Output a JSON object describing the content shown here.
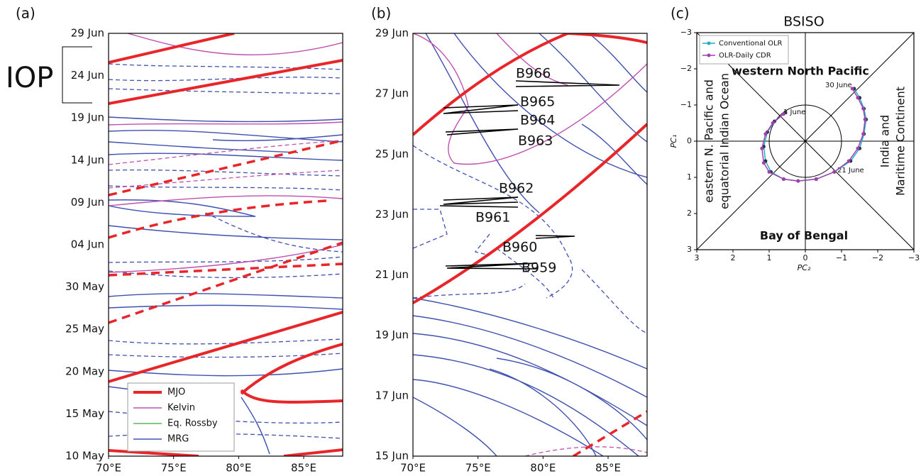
{
  "chart_data": [
    {
      "type": "contour",
      "panel": "(a)",
      "annotation": "IOP",
      "yticks": [
        "10 May",
        "15 May",
        "20 May",
        "25 May",
        "30 May",
        "04 Jun",
        "09 Jun",
        "14 Jun",
        "19 Jun",
        "24 Jun",
        "29 Jun"
      ],
      "xlim": [
        70,
        88
      ],
      "xticks": [
        {
          "value": 70,
          "label": "70°E"
        },
        {
          "value": 75,
          "label": "75°E"
        },
        {
          "value": 80,
          "label": "80°E"
        },
        {
          "value": 85,
          "label": "85°E"
        }
      ],
      "legend": [
        {
          "name": "MJO",
          "color": "#e8262a"
        },
        {
          "name": "Kelvin",
          "color": "#c050b0"
        },
        {
          "name": "Eq. Rossby",
          "color": "#5cb85c"
        },
        {
          "name": "MRG",
          "color": "#4050b0"
        }
      ]
    },
    {
      "type": "contour",
      "panel": "(b)",
      "yticks": [
        "15 Jun",
        "17 Jun",
        "19 Jun",
        "21 Jun",
        "23 Jun",
        "25 Jun",
        "27 Jun",
        "29 Jun"
      ],
      "xlim": [
        70,
        88
      ],
      "xticks": [
        {
          "value": 70,
          "label": "70°E"
        },
        {
          "value": 75,
          "label": "75°E"
        },
        {
          "value": 80,
          "label": "80°E"
        },
        {
          "value": 85,
          "label": "85°E"
        }
      ],
      "labels": [
        "B966",
        "B965",
        "B964",
        "B963",
        "B962",
        "B961",
        "B960",
        "B959"
      ]
    },
    {
      "type": "scatter",
      "panel": "(c)",
      "title": "BSISO",
      "x_label": "PC₂",
      "y_label": "PC₁",
      "xlim": [
        3,
        -3
      ],
      "ylim": [
        3,
        -3
      ],
      "xticks": [
        3,
        2,
        1,
        0,
        {
          "value": -1,
          "label": "−1"
        },
        {
          "value": -2,
          "label": "−2"
        },
        {
          "value": -3,
          "label": "−3"
        }
      ],
      "yticks": [
        {
          "value": -3,
          "label": "−3"
        },
        {
          "value": -2,
          "label": "−2"
        },
        {
          "value": -1,
          "label": "−1"
        },
        0,
        1,
        2,
        3
      ],
      "regions": [
        "western North Pacific",
        "Bay of Bengal",
        "eastern N. Pacific and",
        "equatorial Indian Ocean",
        "India and",
        "Maritime Continent"
      ],
      "dates": [
        "1 June",
        "21 June",
        "30 June"
      ],
      "series": [
        {
          "name": "Conventional OLR",
          "color": "#20b0c0",
          "x": [
            0.55,
            0.85,
            1.05,
            1.15,
            1.1,
            0.95,
            0.6,
            0.2,
            -0.3,
            -0.8,
            -1.25,
            -1.5,
            -1.62,
            -1.68,
            -1.62,
            -1.5,
            -1.35
          ],
          "y": [
            -0.8,
            -0.55,
            -0.25,
            0.15,
            0.55,
            0.85,
            1.05,
            1.1,
            1.05,
            0.85,
            0.55,
            0.2,
            -0.2,
            -0.6,
            -0.9,
            -1.2,
            -1.45
          ]
        },
        {
          "name": "OLR-Daily CDR",
          "color": "#a040b0",
          "x": [
            0.6,
            0.9,
            1.1,
            1.2,
            1.15,
            1.0,
            0.6,
            0.2,
            -0.3,
            -0.8,
            -1.2,
            -1.45,
            -1.6,
            -1.65,
            -1.6,
            -1.45,
            -1.3
          ],
          "y": [
            -0.75,
            -0.5,
            -0.2,
            0.2,
            0.6,
            0.85,
            1.05,
            1.1,
            1.05,
            0.85,
            0.55,
            0.2,
            -0.2,
            -0.6,
            -0.9,
            -1.2,
            -1.45
          ]
        }
      ]
    }
  ]
}
